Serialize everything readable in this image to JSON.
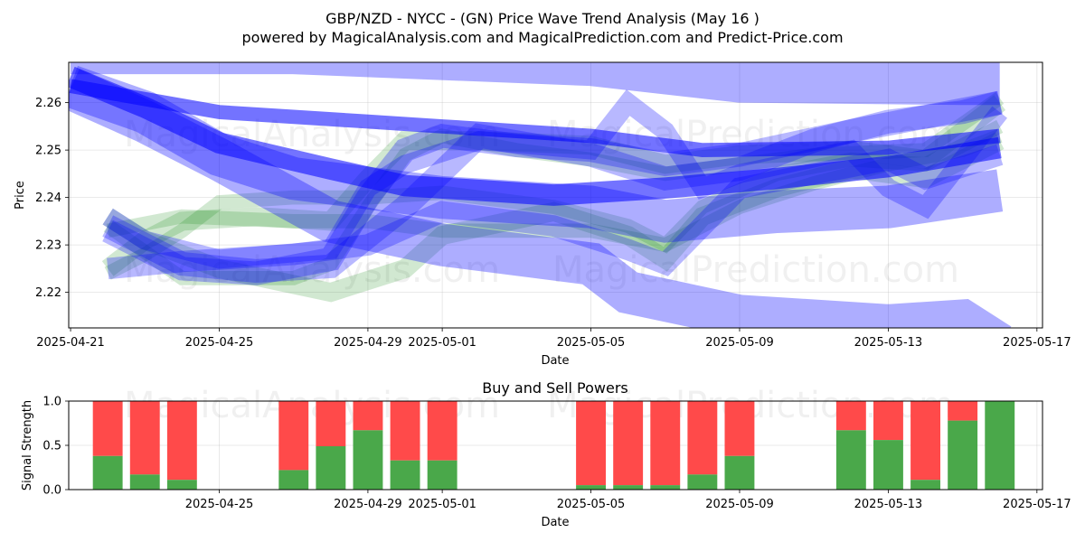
{
  "chart_data": [
    {
      "type": "area",
      "title": "GBP/NZD - NYCC -  (GN) Price Wave Trend Analysis (May 16 )",
      "subtitle": "powered by MagicalAnalysis.com and MagicalPrediction.com and Predict-Price.com",
      "xlabel": "Date",
      "ylabel": "Price",
      "xlim": [
        "2025-04-20",
        "2025-05-17"
      ],
      "ylim": [
        2.2125,
        2.2685
      ],
      "x_ticks": [
        "2025-04-21",
        "2025-04-25",
        "2025-04-29",
        "2025-05-01",
        "2025-05-05",
        "2025-05-09",
        "2025-05-13",
        "2025-05-17"
      ],
      "y_ticks": [
        2.22,
        2.23,
        2.24,
        2.25,
        2.26
      ],
      "grid": true,
      "watermarks": [
        "MagicalAnalysis.com",
        "MagicalPrediction.com",
        "MagicalAnalysis.com",
        "MagicalPrediction.com"
      ],
      "colors": {
        "blue_band": "#0000ff",
        "green_band": "#008000"
      },
      "blue_bands": [
        {
          "points": [
            [
              "2025-04-21",
              2.2705
            ],
            [
              "2025-04-27",
              2.2705
            ],
            [
              "2025-05-05",
              2.268
            ],
            [
              "2025-05-09",
              2.2645
            ],
            [
              "2025-05-15",
              2.264
            ],
            [
              "2025-05-16",
              2.264
            ]
          ],
          "width": 0.009,
          "opacity": 0.32
        },
        {
          "points": [
            [
              "2025-04-21",
              2.2635
            ],
            [
              "2025-04-23",
              2.258
            ],
            [
              "2025-04-25",
              2.249
            ],
            [
              "2025-04-27",
              2.244
            ],
            [
              "2025-05-01",
              2.24
            ],
            [
              "2025-05-05",
              2.238
            ],
            [
              "2025-05-07",
              2.235
            ],
            [
              "2025-05-10",
              2.237
            ],
            [
              "2025-05-13",
              2.238
            ],
            [
              "2025-05-16",
              2.2415
            ]
          ],
          "width": 0.009,
          "opacity": 0.32
        },
        {
          "points": [
            [
              "2025-04-21",
              2.263
            ],
            [
              "2025-04-23",
              2.256
            ],
            [
              "2025-04-25",
              2.248
            ],
            [
              "2025-04-28",
              2.235
            ],
            [
              "2025-05-01",
              2.23
            ],
            [
              "2025-05-05",
              2.226
            ],
            [
              "2025-05-06",
              2.22
            ],
            [
              "2025-05-09",
              2.215
            ],
            [
              "2025-05-13",
              2.213
            ],
            [
              "2025-05-15",
              2.214
            ],
            [
              "2025-05-16",
              2.209
            ]
          ],
          "width": 0.009,
          "opacity": 0.32
        },
        {
          "points": [
            [
              "2025-04-21",
              2.2635
            ],
            [
              "2025-04-25",
              2.258
            ],
            [
              "2025-04-29",
              2.256
            ],
            [
              "2025-05-01",
              2.255
            ],
            [
              "2025-05-05",
              2.253
            ],
            [
              "2025-05-08",
              2.25
            ],
            [
              "2025-05-13",
              2.2505
            ],
            [
              "2025-05-16",
              2.253
            ]
          ],
          "width": 0.003,
          "opacity": 0.55
        },
        {
          "points": [
            [
              "2025-04-21",
              2.2655
            ],
            [
              "2025-04-23",
              2.259
            ],
            [
              "2025-04-25",
              2.2515
            ],
            [
              "2025-04-28",
              2.246
            ],
            [
              "2025-04-30",
              2.2425
            ],
            [
              "2025-05-04",
              2.2405
            ],
            [
              "2025-05-07",
              2.242
            ],
            [
              "2025-05-10",
              2.244
            ],
            [
              "2025-05-13",
              2.2465
            ],
            [
              "2025-05-16",
              2.2505
            ]
          ],
          "width": 0.0045,
          "opacity": 0.55
        },
        {
          "points": [
            [
              "2025-04-22",
              2.234
            ],
            [
              "2025-04-24",
              2.226
            ],
            [
              "2025-04-26",
              2.2245
            ],
            [
              "2025-04-28",
              2.2255
            ],
            [
              "2025-04-30",
              2.238
            ],
            [
              "2025-05-02",
              2.253
            ],
            [
              "2025-05-05",
              2.249
            ],
            [
              "2025-05-07",
              2.244
            ],
            [
              "2025-05-09",
              2.246
            ],
            [
              "2025-05-11",
              2.252
            ],
            [
              "2025-05-13",
              2.256
            ],
            [
              "2025-05-15",
              2.258
            ],
            [
              "2025-05-16",
              2.26
            ]
          ],
          "width": 0.005,
          "opacity": 0.28
        },
        {
          "points": [
            [
              "2025-04-22",
              2.233
            ],
            [
              "2025-04-24",
              2.225
            ],
            [
              "2025-04-26",
              2.224
            ],
            [
              "2025-04-28",
              2.227
            ],
            [
              "2025-04-29",
              2.24
            ],
            [
              "2025-04-30",
              2.25
            ],
            [
              "2025-05-01",
              2.253
            ],
            [
              "2025-05-03",
              2.251
            ],
            [
              "2025-05-05",
              2.25
            ],
            [
              "2025-05-07",
              2.247
            ],
            [
              "2025-05-09",
              2.249
            ],
            [
              "2025-05-12",
              2.254
            ],
            [
              "2025-05-16",
              2.26
            ]
          ],
          "width": 0.005,
          "opacity": 0.28
        },
        {
          "points": [
            [
              "2025-04-22",
              2.225
            ],
            [
              "2025-04-24",
              2.2265
            ],
            [
              "2025-04-27",
              2.228
            ],
            [
              "2025-04-29",
              2.23
            ],
            [
              "2025-05-01",
              2.237
            ],
            [
              "2025-05-04",
              2.234
            ],
            [
              "2025-05-06",
              2.229
            ],
            [
              "2025-05-07",
              2.226
            ],
            [
              "2025-05-08",
              2.234
            ],
            [
              "2025-05-09",
              2.242
            ],
            [
              "2025-05-11",
              2.245
            ],
            [
              "2025-05-13",
              2.248
            ],
            [
              "2025-05-14",
              2.244
            ],
            [
              "2025-05-16",
              2.249
            ]
          ],
          "width": 0.0045,
          "opacity": 0.28
        },
        {
          "points": [
            [
              "2025-04-22",
              2.236
            ],
            [
              "2025-04-23",
              2.231
            ],
            [
              "2025-04-25",
              2.227
            ],
            [
              "2025-04-28",
              2.229
            ],
            [
              "2025-04-29",
              2.242
            ],
            [
              "2025-04-30",
              2.247
            ],
            [
              "2025-05-02",
              2.252
            ],
            [
              "2025-05-05",
              2.25
            ],
            [
              "2025-05-06",
              2.26
            ],
            [
              "2025-05-07",
              2.254
            ],
            [
              "2025-05-08",
              2.242
            ],
            [
              "2025-05-09",
              2.245
            ],
            [
              "2025-05-12",
              2.25
            ],
            [
              "2025-05-13",
              2.242
            ],
            [
              "2025-05-14",
              2.238
            ],
            [
              "2025-05-16",
              2.258
            ]
          ],
          "width": 0.004,
          "opacity": 0.28
        }
      ],
      "green_bands": [
        {
          "points": [
            [
              "2025-04-22",
              2.225
            ],
            [
              "2025-04-23",
              2.231
            ],
            [
              "2025-04-24",
              2.235
            ],
            [
              "2025-04-26",
              2.236
            ],
            [
              "2025-04-28",
              2.235
            ],
            [
              "2025-04-29",
              2.244
            ],
            [
              "2025-04-30",
              2.252
            ],
            [
              "2025-05-02",
              2.252
            ],
            [
              "2025-05-05",
              2.251
            ],
            [
              "2025-05-07",
              2.247
            ],
            [
              "2025-05-09",
              2.249
            ],
            [
              "2025-05-12",
              2.25
            ],
            [
              "2025-05-14",
              2.248
            ],
            [
              "2025-05-16",
              2.26
            ]
          ],
          "width": 0.004,
          "opacity": 0.18
        },
        {
          "points": [
            [
              "2025-04-22",
              2.236
            ],
            [
              "2025-04-23",
              2.231
            ],
            [
              "2025-04-25",
              2.225
            ],
            [
              "2025-04-28",
              2.22
            ],
            [
              "2025-04-30",
              2.225
            ],
            [
              "2025-05-01",
              2.232
            ],
            [
              "2025-05-04",
              2.237
            ],
            [
              "2025-05-06",
              2.232
            ],
            [
              "2025-05-07",
              2.227
            ],
            [
              "2025-05-08",
              2.236
            ],
            [
              "2025-05-10",
              2.242
            ],
            [
              "2025-05-12",
              2.246
            ],
            [
              "2025-05-14",
              2.244
            ],
            [
              "2025-05-16",
              2.252
            ]
          ],
          "width": 0.004,
          "opacity": 0.18
        },
        {
          "points": [
            [
              "2025-04-22",
              2.234
            ],
            [
              "2025-04-24",
              2.223
            ],
            [
              "2025-04-27",
              2.223
            ],
            [
              "2025-04-28",
              2.226
            ],
            [
              "2025-04-29",
              2.238
            ],
            [
              "2025-04-30",
              2.249
            ],
            [
              "2025-05-01",
              2.253
            ],
            [
              "2025-05-03",
              2.25
            ],
            [
              "2025-05-05",
              2.248
            ],
            [
              "2025-05-07",
              2.245
            ],
            [
              "2025-05-09",
              2.247
            ],
            [
              "2025-05-11",
              2.249
            ],
            [
              "2025-05-14",
              2.25
            ],
            [
              "2025-05-16",
              2.261
            ]
          ],
          "width": 0.003,
          "opacity": 0.18
        },
        {
          "points": [
            [
              "2025-04-22",
              2.233
            ],
            [
              "2025-04-24",
              2.236
            ],
            [
              "2025-04-27",
              2.235
            ],
            [
              "2025-04-29",
              2.235
            ],
            [
              "2025-05-01",
              2.233
            ],
            [
              "2025-05-03",
              2.233
            ],
            [
              "2025-05-05",
              2.233
            ],
            [
              "2025-05-07",
              2.23
            ],
            [
              "2025-05-09",
              2.238
            ],
            [
              "2025-05-11",
              2.243
            ],
            [
              "2025-05-13",
              2.247
            ],
            [
              "2025-05-15",
              2.25
            ],
            [
              "2025-05-16",
              2.253
            ]
          ],
          "width": 0.003,
          "opacity": 0.18
        },
        {
          "points": [
            [
              "2025-04-22",
              2.224
            ],
            [
              "2025-04-23",
              2.228
            ],
            [
              "2025-04-24",
              2.233
            ],
            [
              "2025-04-25",
              2.239
            ],
            [
              "2025-04-27",
              2.24
            ],
            [
              "2025-04-29",
              2.24
            ],
            [
              "2025-05-01",
              2.241
            ],
            [
              "2025-05-04",
              2.238
            ],
            [
              "2025-05-06",
              2.234
            ],
            [
              "2025-05-07",
              2.23
            ],
            [
              "2025-05-08",
              2.238
            ],
            [
              "2025-05-10",
              2.245
            ],
            [
              "2025-05-12",
              2.248
            ],
            [
              "2025-05-14",
              2.247
            ],
            [
              "2025-05-16",
              2.255
            ]
          ],
          "width": 0.003,
          "opacity": 0.18
        }
      ]
    },
    {
      "type": "bar",
      "title": "Buy and Sell Powers",
      "xlabel": "Date",
      "ylabel": "Signal Strength",
      "xlim": [
        "2025-04-20",
        "2025-05-17"
      ],
      "ylim": [
        0,
        1.0
      ],
      "y_ticks": [
        0.0,
        0.5,
        1.0
      ],
      "x_ticks": [
        "2025-04-25",
        "2025-04-29",
        "2025-05-01",
        "2025-05-05",
        "2025-05-09",
        "2025-05-13",
        "2025-05-17"
      ],
      "grid": true,
      "watermarks": [
        "MagicalAnalysis.com",
        "MagicalPrediction.com"
      ],
      "series": [
        {
          "name": "Buy",
          "color": "#4aa84a"
        },
        {
          "name": "Sell",
          "color": "#ff4a4a"
        }
      ],
      "bars": [
        {
          "date": "2025-04-22",
          "buy": 0.38
        },
        {
          "date": "2025-04-23",
          "buy": 0.17
        },
        {
          "date": "2025-04-24",
          "buy": 0.11
        },
        {
          "date": "2025-04-27",
          "buy": 0.22
        },
        {
          "date": "2025-04-28",
          "buy": 0.49
        },
        {
          "date": "2025-04-29",
          "buy": 0.67
        },
        {
          "date": "2025-04-30",
          "buy": 0.33
        },
        {
          "date": "2025-05-01",
          "buy": 0.33
        },
        {
          "date": "2025-05-05",
          "buy": 0.05
        },
        {
          "date": "2025-05-06",
          "buy": 0.05
        },
        {
          "date": "2025-05-07",
          "buy": 0.05
        },
        {
          "date": "2025-05-08",
          "buy": 0.17
        },
        {
          "date": "2025-05-09",
          "buy": 0.38
        },
        {
          "date": "2025-05-12",
          "buy": 0.67
        },
        {
          "date": "2025-05-13",
          "buy": 0.56
        },
        {
          "date": "2025-05-14",
          "buy": 0.11
        },
        {
          "date": "2025-05-15",
          "buy": 0.78
        },
        {
          "date": "2025-05-16",
          "buy": 1.0
        }
      ]
    }
  ]
}
